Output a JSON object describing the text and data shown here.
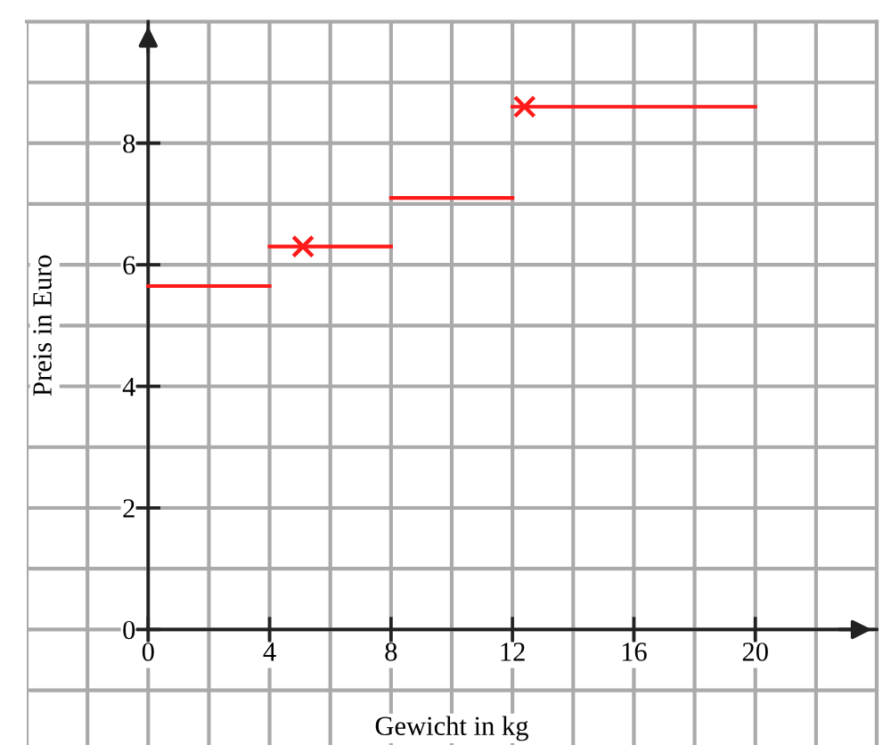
{
  "chart_data": {
    "type": "line",
    "xlabel": "Gewicht in kg",
    "ylabel": "Preis in Euro",
    "series": [
      {
        "color": "#ff1a1a",
        "marker": "none",
        "line_style": "solid",
        "x": [
          0,
          4
        ],
        "values": [
          5.65,
          5.65
        ]
      },
      {
        "color": "#ff1a1a",
        "marker": "none",
        "line_style": "solid",
        "x": [
          4,
          8
        ],
        "values": [
          6.3,
          6.3
        ]
      },
      {
        "color": "#ff1a1a",
        "marker": "none",
        "line_style": "solid",
        "x": [
          8,
          12
        ],
        "values": [
          7.1,
          7.1
        ]
      },
      {
        "color": "#ff1a1a",
        "marker": "none",
        "line_style": "solid",
        "x": [
          12,
          20
        ],
        "values": [
          8.6,
          8.6
        ]
      },
      {
        "type": "scatter",
        "color": "#ff1a1a",
        "marker": "cross",
        "x": [
          5.1,
          12.4
        ],
        "values": [
          6.3,
          8.6
        ]
      }
    ],
    "xlim": [
      -4,
      24
    ],
    "ylim": [
      -1.9,
      10
    ],
    "xticks": [
      {
        "value": -4,
        "label": null
      },
      {
        "value": -2,
        "label": null
      },
      0,
      {
        "value": 2,
        "label": null
      },
      4,
      {
        "value": 6,
        "label": null
      },
      8,
      {
        "value": 10,
        "label": null
      },
      12,
      {
        "value": 14,
        "label": null
      },
      16,
      {
        "value": 18,
        "label": null
      },
      20,
      {
        "value": 22,
        "label": null
      },
      {
        "value": 24,
        "label": null
      }
    ],
    "yticks": [
      {
        "value": -1,
        "label": null
      },
      0,
      {
        "value": 1,
        "label": null
      },
      2,
      {
        "value": 3,
        "label": null
      },
      4,
      {
        "value": 5,
        "label": null
      },
      6,
      {
        "value": 7,
        "label": null
      },
      8,
      {
        "value": 9,
        "label": null
      },
      {
        "value": 10,
        "label": null
      }
    ],
    "grid": true
  }
}
